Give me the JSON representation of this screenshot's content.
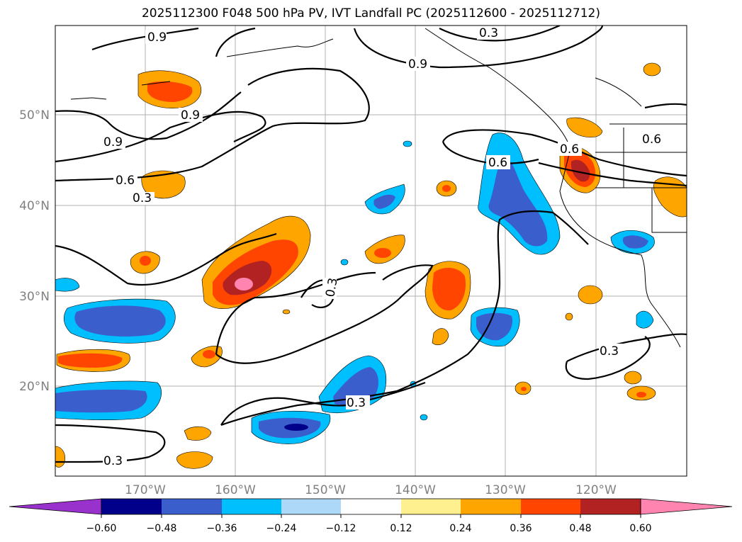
{
  "title": "2025112300 F048 500 hPa PV, IVT Landfall PC (2025112600 - 2025112712)",
  "lon_labels": [
    "170°W",
    "160°W",
    "150°W",
    "140°W",
    "130°W",
    "120°W"
  ],
  "lat_labels": [
    "50°N",
    "40°N",
    "30°N",
    "20°N"
  ],
  "contour_labels": [
    "0.9",
    "0.3",
    "0.9",
    "0.9",
    "0.9",
    "0.6",
    "0.3",
    "0.3",
    "0.6",
    "0.6",
    "0.6",
    "0.3",
    "0.3",
    "0.3"
  ],
  "colorbar": {
    "ticks": [
      "−0.60",
      "−0.48",
      "−0.36",
      "−0.24",
      "−0.12",
      "0.12",
      "0.24",
      "0.36",
      "0.48",
      "0.60"
    ],
    "colors": [
      "#9932cc",
      "#00008b",
      "#3a5fcd",
      "#00bfff",
      "#add8f7",
      "#ffffff",
      "#fff08f",
      "#ffa500",
      "#ff4500",
      "#b22222",
      "#ff85b0"
    ]
  },
  "palette": {
    "pink": "#ff85b0",
    "darkred": "#b22222",
    "red": "#ff4500",
    "orange": "#ffa500",
    "lightblue": "#add8f7",
    "cyan": "#00bfff",
    "blue": "#3a5fcd",
    "navy": "#00008b"
  }
}
